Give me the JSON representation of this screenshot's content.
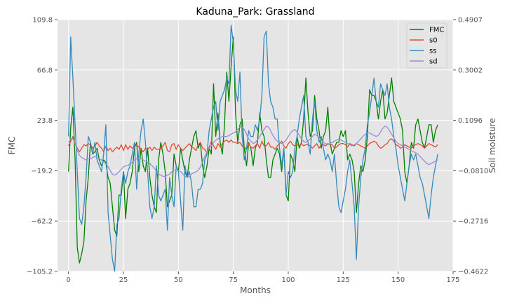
{
  "chart_data": {
    "type": "line",
    "title": "Kaduna_Park: Grassland",
    "xlabel": "Months",
    "ylabel": "FMC",
    "y2label": "Soil moisture",
    "xlim": [
      -5,
      175
    ],
    "ylim": [
      -105.2,
      109.8
    ],
    "y2lim": [
      -0.4622,
      0.4907
    ],
    "xticks": [
      0,
      25,
      50,
      75,
      100,
      125,
      150,
      175
    ],
    "yticks": [
      -105.2,
      -62.2,
      -19.2,
      23.8,
      66.8,
      109.8
    ],
    "y2ticks": [
      -0.4622,
      -0.2716,
      -0.081,
      0.1096,
      0.3002,
      0.4907
    ],
    "ytick_labels": [
      "−105.2",
      "−62.2",
      "−19.2",
      "23.8",
      "66.8",
      "109.8"
    ],
    "y2tick_labels": [
      "−0.4622",
      "−0.2716",
      "−0.0810",
      "0.1096",
      "0.3002",
      "0.4907"
    ],
    "grid": true,
    "legend_position": "top-right",
    "series": [
      {
        "name": "FMC",
        "color": "#008000",
        "axis": "left",
        "x_start": 0,
        "values": [
          -20,
          18,
          35,
          -10,
          -85,
          -98,
          -90,
          -80,
          -45,
          -25,
          5,
          -5,
          -3,
          0,
          -10,
          -15,
          -10,
          -12,
          -25,
          -30,
          -50,
          -70,
          -75,
          -40,
          -40,
          -20,
          -60,
          -35,
          -30,
          -20,
          0,
          5,
          -20,
          0,
          -15,
          -20,
          0,
          -25,
          -40,
          -50,
          -55,
          -10,
          5,
          -5,
          -20,
          -50,
          -45,
          -40,
          -5,
          -15,
          -20,
          0,
          -10,
          -20,
          -25,
          -10,
          0,
          10,
          15,
          0,
          5,
          -15,
          -25,
          -15,
          0,
          -5,
          55,
          10,
          30,
          5,
          -5,
          20,
          65,
          40,
          70,
          95,
          30,
          5,
          20,
          25,
          0,
          -15,
          5,
          0,
          -15,
          0,
          5,
          30,
          15,
          10,
          -10,
          -25,
          -25,
          -10,
          -5,
          0,
          -5,
          -20,
          0,
          -40,
          -45,
          -5,
          -10,
          -20,
          10,
          0,
          5,
          25,
          60,
          30,
          10,
          15,
          45,
          25,
          15,
          0,
          10,
          15,
          35,
          5,
          -5,
          0,
          5,
          5,
          15,
          10,
          15,
          -10,
          -5,
          -10,
          -20,
          -55,
          -30,
          -15,
          -20,
          -10,
          10,
          50,
          45,
          45,
          40,
          25,
          40,
          50,
          25,
          30,
          45,
          60,
          40,
          35,
          30,
          25,
          15,
          -20,
          -30,
          -15,
          5,
          0,
          20,
          25,
          15,
          5,
          0,
          10,
          20,
          20,
          5,
          15,
          20
        ]
      },
      {
        "name": "s0",
        "color": "#e24a33",
        "axis": "left",
        "x_start": 0,
        "values": [
          2,
          6,
          10,
          4,
          0,
          -3,
          0,
          3,
          2,
          4,
          3,
          0,
          2,
          5,
          2,
          0,
          -3,
          2,
          -2,
          0,
          -3,
          -1,
          1,
          -1,
          3,
          -2,
          3,
          -1,
          2,
          0,
          1,
          3,
          1,
          -1,
          -3,
          0,
          -1,
          1,
          -2,
          1,
          -1,
          -1,
          0,
          2,
          5,
          -2,
          -3,
          3,
          4,
          -1,
          3,
          0,
          -2,
          0,
          2,
          4,
          1,
          0,
          -2,
          3,
          5,
          0,
          -1,
          -4,
          1,
          6,
          2,
          -1,
          4,
          1,
          4,
          6,
          7,
          5,
          7,
          5,
          5,
          4,
          5,
          2,
          1,
          -1,
          4,
          1,
          0,
          2,
          4,
          0,
          6,
          2,
          2,
          5,
          1,
          1,
          -1,
          2,
          4,
          6,
          2,
          0,
          4,
          6,
          3,
          2,
          3,
          2,
          4,
          2,
          3,
          3,
          2,
          0,
          2,
          4,
          0,
          3,
          3,
          2,
          4,
          3,
          3,
          0,
          1,
          3,
          4,
          4,
          3,
          1,
          4,
          3,
          2,
          4,
          3,
          2,
          1,
          0,
          2,
          4,
          5,
          6,
          5,
          2,
          0,
          1,
          3,
          4,
          7,
          8,
          6,
          3,
          2,
          0,
          1,
          3,
          2,
          1,
          0,
          2,
          3,
          4,
          3,
          2,
          0,
          2,
          4,
          3,
          2,
          1,
          3
        ]
      },
      {
        "name": "ss",
        "color": "#348abd",
        "axis": "left",
        "x_start": 0,
        "values": [
          10,
          95,
          60,
          20,
          -20,
          -60,
          -65,
          -50,
          -25,
          10,
          5,
          -5,
          5,
          -10,
          -15,
          -20,
          -5,
          20,
          -55,
          -75,
          -95,
          -105,
          -65,
          -60,
          -35,
          -20,
          -30,
          -20,
          -15,
          -5,
          5,
          -35,
          -5,
          15,
          25,
          5,
          -20,
          -50,
          -60,
          -50,
          -15,
          -40,
          -45,
          -40,
          -35,
          -70,
          -25,
          -40,
          -50,
          -15,
          -20,
          -45,
          -70,
          -15,
          -25,
          -20,
          -30,
          -50,
          -50,
          -35,
          -35,
          -30,
          -10,
          -5,
          15,
          25,
          35,
          40,
          15,
          40,
          45,
          50,
          60,
          55,
          105,
          90,
          50,
          40,
          65,
          10,
          -10,
          0,
          15,
          10,
          10,
          20,
          15,
          25,
          45,
          95,
          100,
          55,
          40,
          35,
          25,
          25,
          0,
          -15,
          0,
          -40,
          -20,
          -25,
          -20,
          0,
          10,
          25,
          35,
          45,
          10,
          5,
          -5,
          25,
          40,
          15,
          5,
          10,
          0,
          -10,
          -5,
          -10,
          -20,
          -5,
          -30,
          -50,
          -55,
          -45,
          -35,
          -20,
          -10,
          -30,
          -50,
          -95,
          -50,
          -25,
          -10,
          0,
          20,
          30,
          45,
          60,
          40,
          35,
          55,
          50,
          45,
          55,
          35,
          25,
          10,
          0,
          -15,
          -25,
          -35,
          -45,
          -30,
          -15,
          -5,
          -10,
          -5,
          -15,
          -25,
          -30,
          -40,
          -50,
          -60,
          -40,
          -25,
          -15,
          -5
        ]
      },
      {
        "name": "sd",
        "color": "#988ed5",
        "axis": "left",
        "x_start": 0,
        "values": [
          5,
          8,
          8,
          4,
          -2,
          -6,
          -8,
          -9,
          -10,
          -9,
          -9,
          -8,
          -7,
          -8,
          -9,
          -10,
          -12,
          -13,
          -16,
          -19,
          -22,
          -23,
          -22,
          -20,
          -18,
          -16,
          -15,
          -15,
          -13,
          -12,
          -10,
          -9,
          -9,
          -9,
          -10,
          -11,
          -12,
          -13,
          -15,
          -17,
          -20,
          -22,
          -23,
          -24,
          -24,
          -23,
          -22,
          -20,
          -19,
          -18,
          -19,
          -20,
          -22,
          -24,
          -25,
          -24,
          -22,
          -21,
          -20,
          -19,
          -16,
          -12,
          -7,
          -3,
          0,
          2,
          5,
          7,
          8,
          9,
          10,
          10,
          10,
          11,
          12,
          13,
          14,
          16,
          18,
          18,
          16,
          12,
          8,
          6,
          4,
          5,
          7,
          10,
          13,
          16,
          19,
          18,
          15,
          11,
          8,
          6,
          5,
          4,
          5,
          7,
          10,
          13,
          15,
          16,
          14,
          11,
          8,
          6,
          5,
          6,
          8,
          10,
          12,
          11,
          9,
          7,
          5,
          4,
          3,
          4,
          5,
          6,
          7,
          8,
          7,
          6,
          5,
          4,
          3,
          2,
          3,
          4,
          6,
          8,
          10,
          12,
          13,
          13,
          12,
          11,
          10,
          11,
          14,
          17,
          19,
          18,
          15,
          12,
          9,
          6,
          4,
          3,
          2,
          1,
          0,
          -1,
          -2,
          -3,
          -4,
          -5,
          -7,
          -9,
          -11,
          -13,
          -14,
          -13,
          -12,
          -11,
          -10
        ]
      }
    ]
  }
}
